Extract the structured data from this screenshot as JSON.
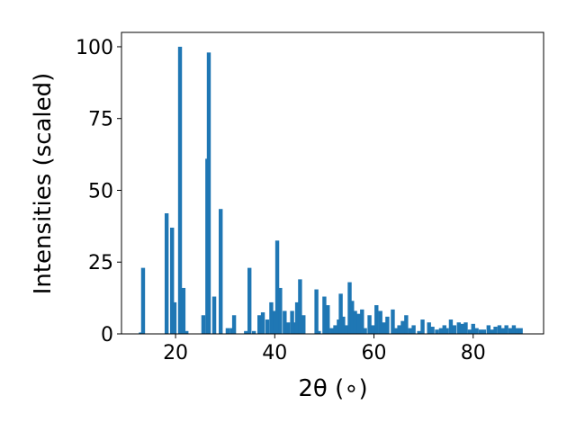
{
  "chart_data": {
    "type": "bar",
    "color": "#1f77b4",
    "x_label": "2θ (∘)",
    "y_label": "Intensities (scaled)",
    "x": [
      13.0,
      13.45,
      18.2,
      19.3,
      19.8,
      20.9,
      21.6,
      22.2,
      25.6,
      26.4,
      26.7,
      27.8,
      29.1,
      30.5,
      31.3,
      31.8,
      34.2,
      34.9,
      35.8,
      36.9,
      37.6,
      38.5,
      39.3,
      40.0,
      40.5,
      41.1,
      42.0,
      42.7,
      43.5,
      44.2,
      44.5,
      45.1,
      45.8,
      48.4,
      48.9,
      50.0,
      50.7,
      51.5,
      52.2,
      52.9,
      53.3,
      53.8,
      54.4,
      55.1,
      55.6,
      56.2,
      56.9,
      57.6,
      58.2,
      59.1,
      59.8,
      60.5,
      61.3,
      62.0,
      62.7,
      63.8,
      64.4,
      65.1,
      65.8,
      66.5,
      67.3,
      68.0,
      69.1,
      69.8,
      71.1,
      71.8,
      72.7,
      73.5,
      74.2,
      74.7,
      75.5,
      76.2,
      77.1,
      77.8,
      78.5,
      79.3,
      80.0,
      80.7,
      81.5,
      82.2,
      83.1,
      83.8,
      84.5,
      85.3,
      86.0,
      86.7,
      87.5,
      88.2,
      88.9,
      89.6
    ],
    "values": [
      0.5,
      23,
      42,
      37,
      11,
      100,
      16,
      1,
      6.5,
      61,
      98,
      13,
      43.5,
      2,
      2,
      6.5,
      1,
      23,
      1,
      6.5,
      7.5,
      5,
      11,
      8,
      32.5,
      16,
      8,
      4,
      8,
      4,
      11,
      19,
      6.5,
      15.5,
      1,
      13,
      10,
      2,
      3,
      5,
      14,
      6,
      3,
      18,
      11.5,
      8,
      7,
      8.5,
      2,
      6.5,
      3,
      10,
      8,
      4,
      6,
      8.5,
      2,
      3,
      4.5,
      6.5,
      2,
      3,
      1,
      5,
      4,
      2.5,
      1.5,
      2,
      3,
      2,
      5,
      3,
      4,
      3.5,
      4,
      1.5,
      3.5,
      2,
      1.5,
      1.5,
      3,
      1.5,
      2.5,
      3,
      2,
      3,
      2,
      3,
      2,
      2
    ],
    "xlim": [
      9.1,
      94.2
    ],
    "ylim": [
      0,
      105
    ],
    "xticks": [
      20,
      40,
      60,
      80
    ],
    "yticks": [
      0,
      25,
      50,
      75,
      100
    ]
  }
}
